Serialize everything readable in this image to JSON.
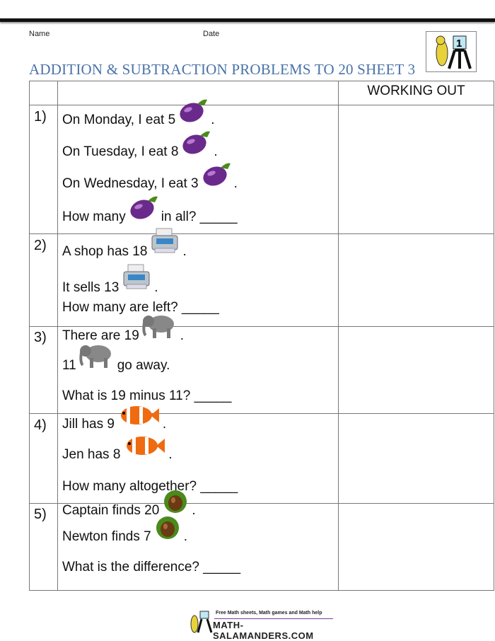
{
  "header": {
    "name_label": "Name",
    "date_label": "Date",
    "title": "ADDITION & SUBTRACTION PROBLEMS TO 20 SHEET 3",
    "logo_grade": "1"
  },
  "table": {
    "working_out_header": "WORKING OUT"
  },
  "problems": [
    {
      "number": "1)",
      "lines": [
        {
          "before": "On Monday, I eat 5",
          "icon": "eggplant-icon",
          "after": "."
        },
        {
          "before": "On Tuesday, I eat 8",
          "icon": "eggplant-icon",
          "after": "."
        },
        {
          "before": "On Wednesday, I eat 3",
          "icon": "eggplant-icon",
          "after": "."
        },
        {
          "before": "How many",
          "icon": "eggplant-icon",
          "after": "in all? _____"
        }
      ]
    },
    {
      "number": "2)",
      "lines": [
        {
          "before": "A shop has 18",
          "icon": "printer-icon",
          "after": "."
        },
        {
          "before": "It sells 13",
          "icon": "printer-icon",
          "after": "."
        },
        {
          "before": "How many are left? _____",
          "icon": "",
          "after": ""
        }
      ]
    },
    {
      "number": "3)",
      "lines": [
        {
          "before": "There are 19",
          "icon": "elephant-icon",
          "after": "."
        },
        {
          "before": "11",
          "icon": "elephant-icon",
          "after": "go away."
        },
        {
          "before": "What is 19 minus 11? _____",
          "icon": "",
          "after": ""
        }
      ]
    },
    {
      "number": "4)",
      "lines": [
        {
          "before": "Jill has 9",
          "icon": "clownfish-icon",
          "after": "."
        },
        {
          "before": "Jen has 8",
          "icon": "clownfish-icon",
          "after": "."
        },
        {
          "before": "How many altogether? _____",
          "icon": "",
          "after": ""
        }
      ]
    },
    {
      "number": "5)",
      "lines": [
        {
          "before": "Captain finds 20",
          "icon": "chestnut-icon",
          "after": "."
        },
        {
          "before": "Newton finds 7",
          "icon": "chestnut-icon",
          "after": "."
        },
        {
          "before": "What is the difference? _____",
          "icon": "",
          "after": ""
        }
      ]
    }
  ],
  "footer": {
    "tagline": "Free Math sheets, Math games and Math help",
    "site": "MATH-SALAMANDERS.COM"
  }
}
